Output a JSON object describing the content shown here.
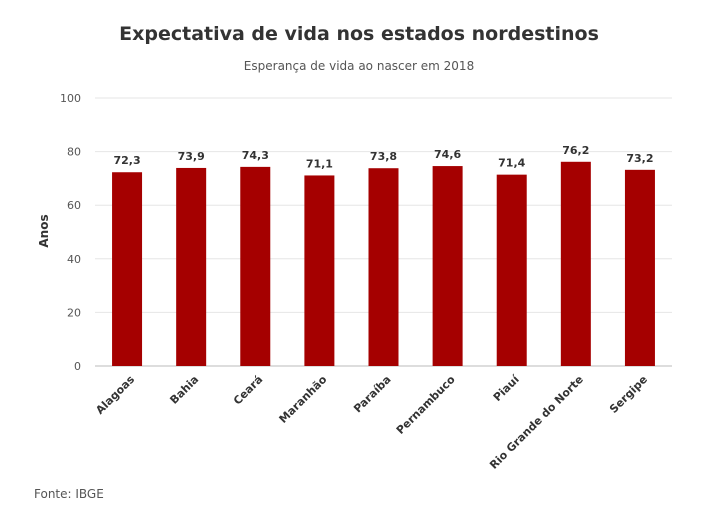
{
  "chart_data": {
    "type": "bar",
    "title": "Expectativa de vida nos estados nordestinos",
    "subtitle": "Esperança de vida ao nascer em 2018",
    "xlabel": "",
    "ylabel": "Anos",
    "ylim": [
      0,
      100
    ],
    "yticks": [
      0,
      20,
      40,
      60,
      80,
      100
    ],
    "categories": [
      "Alagoas",
      "Bahia",
      "Ceará",
      "Maranhão",
      "Paraíba",
      "Pernambuco",
      "Piauí",
      "Rio Grande do Norte",
      "Sergipe"
    ],
    "values": [
      72.3,
      73.9,
      74.3,
      71.1,
      73.8,
      74.6,
      71.4,
      76.2,
      73.2
    ],
    "value_labels": [
      "72,3",
      "73,9",
      "74,3",
      "71,1",
      "73,8",
      "74,6",
      "71,4",
      "76,2",
      "73,2"
    ],
    "bar_color": "#a50000",
    "grid": true,
    "legend": "none"
  },
  "source": "Fonte: IBGE"
}
